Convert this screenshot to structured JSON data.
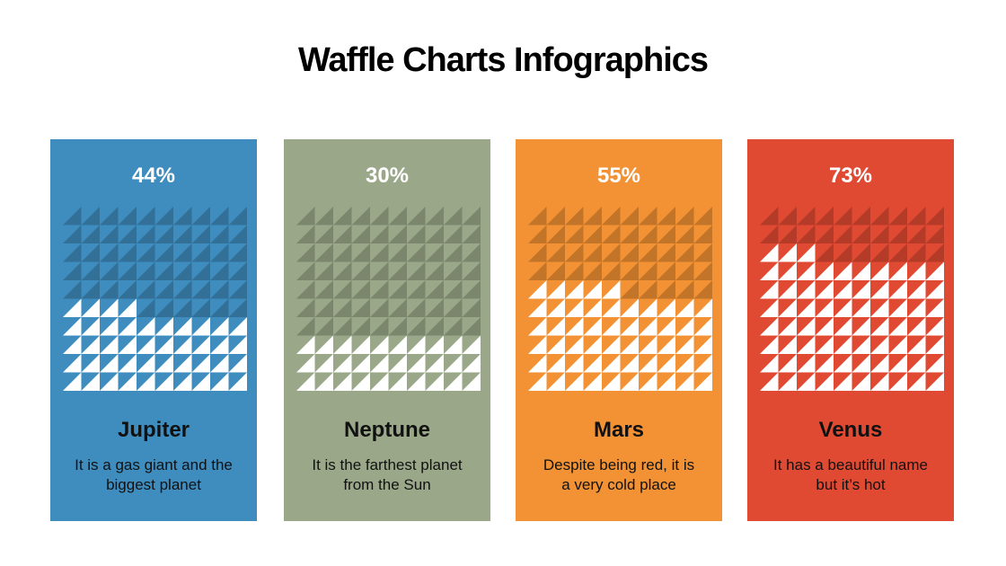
{
  "title": "Waffle Charts Infographics",
  "chart_data": [
    {
      "type": "waffle",
      "title": "Jupiter",
      "subtitle": "It is a gas giant and the biggest planet",
      "values": [
        44
      ],
      "value_labels": [
        "44%"
      ],
      "color": "#3f8dbf"
    },
    {
      "type": "waffle",
      "title": "Neptune",
      "subtitle": "It is the farthest planet from the Sun",
      "values": [
        30
      ],
      "value_labels": [
        "30%"
      ],
      "color": "#9aa889"
    },
    {
      "type": "waffle",
      "title": "Mars",
      "subtitle": "Despite being red, it is a very cold place",
      "values": [
        55
      ],
      "value_labels": [
        "55%"
      ],
      "color": "#f39234"
    },
    {
      "type": "waffle",
      "title": "Venus",
      "subtitle": "It has a beautiful name but it’s hot",
      "values": [
        73
      ],
      "value_labels": [
        "73%"
      ],
      "color": "#e04a33"
    }
  ]
}
